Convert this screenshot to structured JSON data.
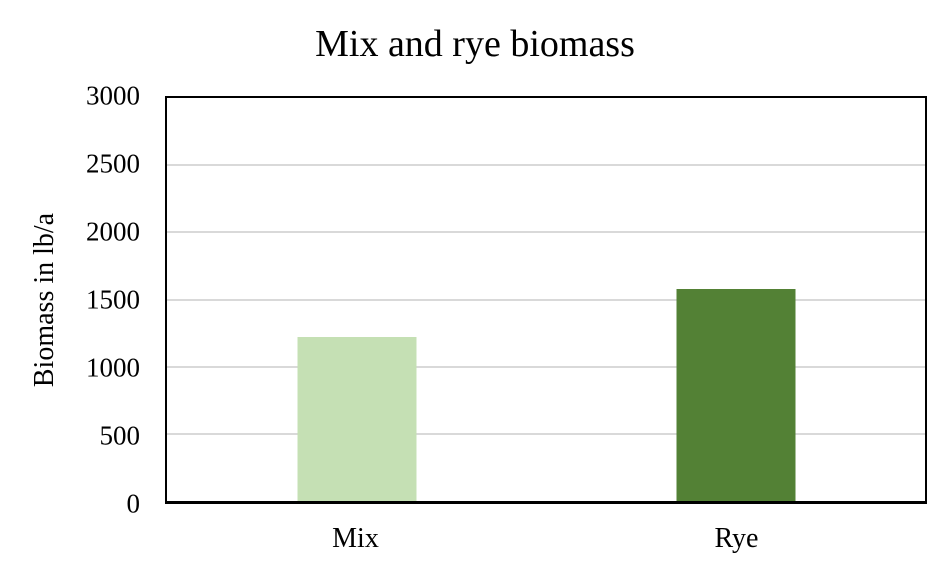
{
  "chart_data": {
    "type": "bar",
    "title": "Mix and rye biomass",
    "xlabel": "",
    "ylabel": "Biomass in lb/a",
    "categories": [
      "Mix",
      "Rye"
    ],
    "values": [
      1220,
      1580
    ],
    "bar_colors": [
      "#c5e0b4",
      "#538135"
    ],
    "ylim": [
      0,
      3000
    ],
    "y_ticks": [
      0,
      500,
      1000,
      1500,
      2000,
      2500,
      3000
    ],
    "grid": "horizontal",
    "gridline_color": "#d9d9d9",
    "axis_color": "#000000",
    "plot_background": "#ffffff",
    "legend": "none"
  }
}
